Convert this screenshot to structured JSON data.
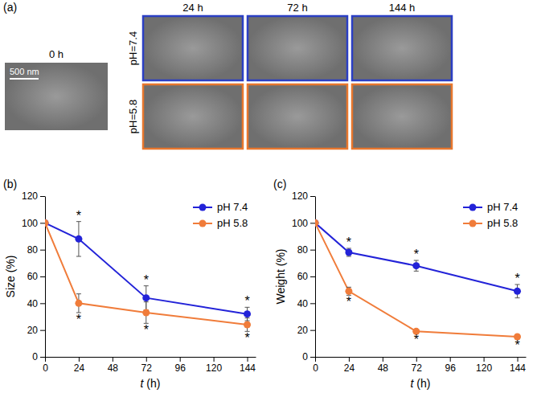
{
  "panel_a": {
    "label": "(a)",
    "reference_label": "0 h",
    "scale_bar": "500 nm",
    "columns": [
      "24 h",
      "72 h",
      "144 h"
    ],
    "rows": [
      {
        "label": "pH=7.4",
        "color": "#2b3fc4"
      },
      {
        "label": "pH=5.8",
        "color": "#e8772e"
      }
    ]
  },
  "chart_data": [
    {
      "type": "line",
      "label": "(b)",
      "x_label": "t (h)",
      "y_label": "Size (%)",
      "x": [
        0,
        24,
        72,
        144
      ],
      "xlim": [
        0,
        150
      ],
      "xticks": [
        0,
        24,
        48,
        72,
        96,
        120,
        144
      ],
      "ylim": [
        0,
        120
      ],
      "yticks": [
        0,
        20,
        40,
        60,
        80,
        100,
        120
      ],
      "grid": false,
      "legend": "upper right",
      "marker": "circle",
      "series": [
        {
          "name": "pH 7.4",
          "color": "#2323d8",
          "values": [
            100,
            88,
            44,
            32
          ],
          "errors": [
            0,
            13,
            9,
            5
          ]
        },
        {
          "name": "pH 5.8",
          "color": "#f07c3a",
          "values": [
            100,
            40,
            33,
            24
          ],
          "errors": [
            0,
            7,
            8,
            5
          ]
        }
      ],
      "annotations": [
        {
          "text": "*",
          "series": 0,
          "index": 1
        },
        {
          "text": "*",
          "series": 0,
          "index": 2
        },
        {
          "text": "*",
          "series": 0,
          "index": 3
        },
        {
          "text": "*",
          "series": 1,
          "index": 1
        },
        {
          "text": "*",
          "series": 1,
          "index": 2
        },
        {
          "text": "*",
          "series": 1,
          "index": 3
        }
      ]
    },
    {
      "type": "line",
      "label": "(c)",
      "x_label": "t (h)",
      "y_label": "Weight (%)",
      "x": [
        0,
        24,
        72,
        144
      ],
      "xlim": [
        0,
        150
      ],
      "xticks": [
        0,
        24,
        48,
        72,
        96,
        120,
        144
      ],
      "ylim": [
        0,
        120
      ],
      "yticks": [
        0,
        20,
        40,
        60,
        80,
        100,
        120
      ],
      "grid": false,
      "legend": "upper right",
      "marker": "circle",
      "series": [
        {
          "name": "pH 7.4",
          "color": "#2323d8",
          "values": [
            100,
            78,
            68,
            49
          ],
          "errors": [
            0,
            3,
            4,
            5
          ]
        },
        {
          "name": "pH 5.8",
          "color": "#f07c3a",
          "values": [
            100,
            49,
            19,
            15
          ],
          "errors": [
            0,
            3,
            1,
            1
          ]
        }
      ],
      "annotations": [
        {
          "text": "*",
          "series": 0,
          "index": 1
        },
        {
          "text": "*",
          "series": 0,
          "index": 2
        },
        {
          "text": "*",
          "series": 0,
          "index": 3
        },
        {
          "text": "*",
          "series": 1,
          "index": 1
        },
        {
          "text": "*",
          "series": 1,
          "index": 2
        },
        {
          "text": "*",
          "series": 1,
          "index": 3
        }
      ]
    }
  ]
}
